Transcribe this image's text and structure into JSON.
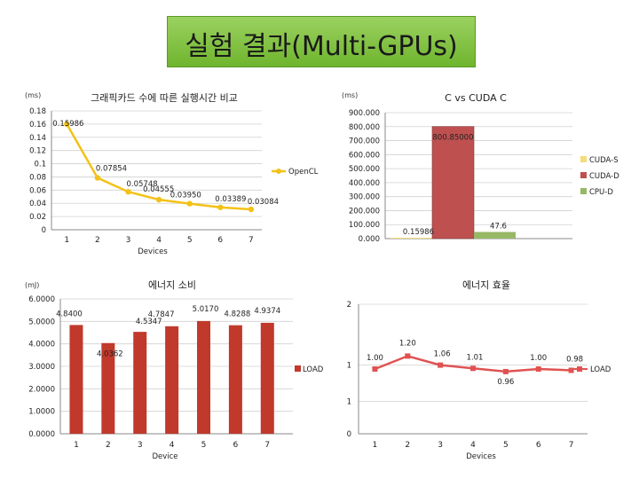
{
  "slide": {
    "title": "실험 결과(Multi-GPUs)"
  },
  "chart_data": [
    {
      "type": "line",
      "title": "그래픽카드 수에 따른 실행시간 비교",
      "unit_label": "(ms)",
      "xlabel": "Devices",
      "categories": [
        "1",
        "2",
        "3",
        "4",
        "5",
        "6",
        "7"
      ],
      "y_ticks": [
        "0",
        "0.02",
        "0.04",
        "0.06",
        "0.08",
        "0.1",
        "0.12",
        "0.14",
        "0.16",
        "0.18"
      ],
      "ylim": [
        0,
        0.18
      ],
      "series": [
        {
          "name": "OpenCL",
          "values": [
            0.15986,
            0.07854,
            0.05748,
            0.04555,
            0.0395,
            0.03389,
            0.03084
          ],
          "labels": [
            "0.15986",
            "0.07854",
            "0.05748",
            "0.04555",
            "0.03950",
            "0.03389",
            "0.03084"
          ]
        }
      ],
      "legend": "right",
      "grid": true,
      "color": "#f3c218"
    },
    {
      "type": "bar",
      "title": "C vs CUDA C",
      "unit_label": "(ms)",
      "categories": [
        "CUDA-S",
        "CUDA-D",
        "CPU-D"
      ],
      "values": [
        0.15986,
        800.85,
        47.6
      ],
      "labels": [
        "0.15986",
        "800.85000",
        "47.6"
      ],
      "y_ticks": [
        "0.000",
        "100.000",
        "200.000",
        "300.000",
        "400.000",
        "500.000",
        "600.000",
        "700.000",
        "800.000",
        "900.000"
      ],
      "ylim": [
        0,
        900
      ],
      "legend": "right",
      "colors": [
        "#f5dc7a",
        "#bf5050",
        "#97b865"
      ]
    },
    {
      "type": "bar",
      "title": "에너지 소비",
      "unit_label": "(mJ)",
      "xlabel": "Device",
      "categories": [
        "1",
        "2",
        "3",
        "4",
        "5",
        "6",
        "7"
      ],
      "series": [
        {
          "name": "LOAD",
          "values": [
            4.84,
            4.0362,
            4.5347,
            4.7847,
            5.017,
            4.8288,
            4.9374
          ],
          "labels": [
            "4.8400",
            "4.0362",
            "4.5347",
            "4.7847",
            "5.0170",
            "4.8288",
            "4.9374"
          ]
        }
      ],
      "y_ticks": [
        "0.0000",
        "1.0000",
        "2.0000",
        "3.0000",
        "4.0000",
        "5.0000",
        "6.0000"
      ],
      "ylim": [
        0,
        6
      ],
      "legend": "right",
      "color": "#c0392b"
    },
    {
      "type": "line",
      "title": "에너지 효율",
      "xlabel": "Devices",
      "categories": [
        "1",
        "2",
        "3",
        "4",
        "5",
        "6",
        "7"
      ],
      "series": [
        {
          "name": "LOAD",
          "values": [
            1.0,
            1.2,
            1.06,
            1.01,
            0.96,
            1.0,
            0.98
          ],
          "labels": [
            "1.00",
            "1.20",
            "1.06",
            "1.01",
            "0.96",
            "1.00",
            "0.98"
          ]
        }
      ],
      "y_ticks": [
        "0",
        "1",
        "1",
        "2"
      ],
      "ylim": [
        0,
        2
      ],
      "legend": "right",
      "color": "#e05252"
    }
  ]
}
